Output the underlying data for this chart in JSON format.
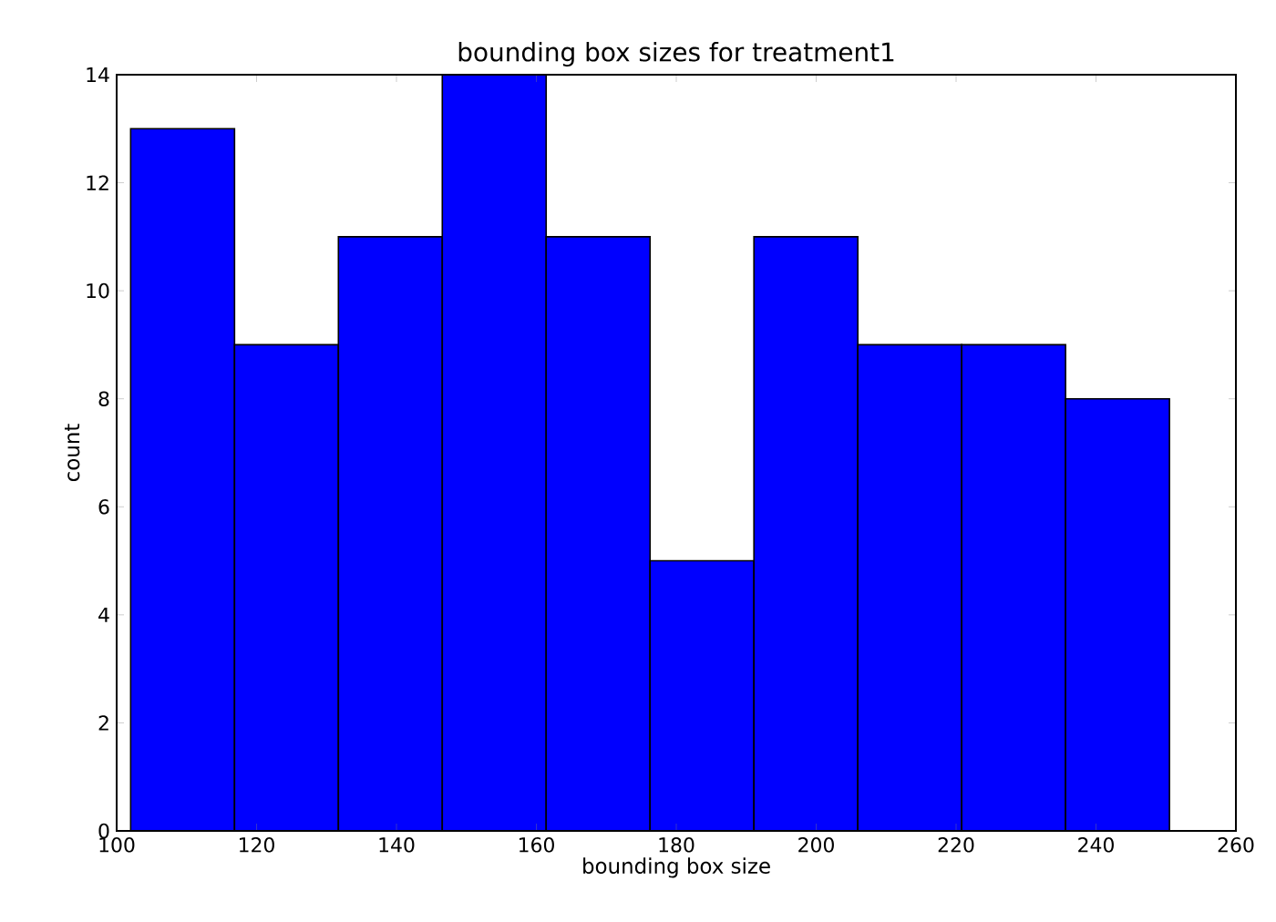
{
  "chart_data": {
    "type": "histogram",
    "title": "bounding box sizes for treatment1",
    "xlabel": "bounding box size",
    "ylabel": "count",
    "bins": [
      102.0,
      116.85,
      131.7,
      146.55,
      161.4,
      176.25,
      191.1,
      205.95,
      220.8,
      235.65,
      250.5
    ],
    "values": [
      13,
      9,
      11,
      14,
      11,
      5,
      11,
      9,
      9,
      8
    ],
    "color": "#0000ff",
    "xlim": [
      100,
      260
    ],
    "ylim": [
      0,
      14
    ],
    "xticks": [
      100,
      120,
      140,
      160,
      180,
      200,
      220,
      240,
      260
    ],
    "yticks": [
      0,
      2,
      4,
      6,
      8,
      10,
      12,
      14
    ],
    "grid": false
  }
}
